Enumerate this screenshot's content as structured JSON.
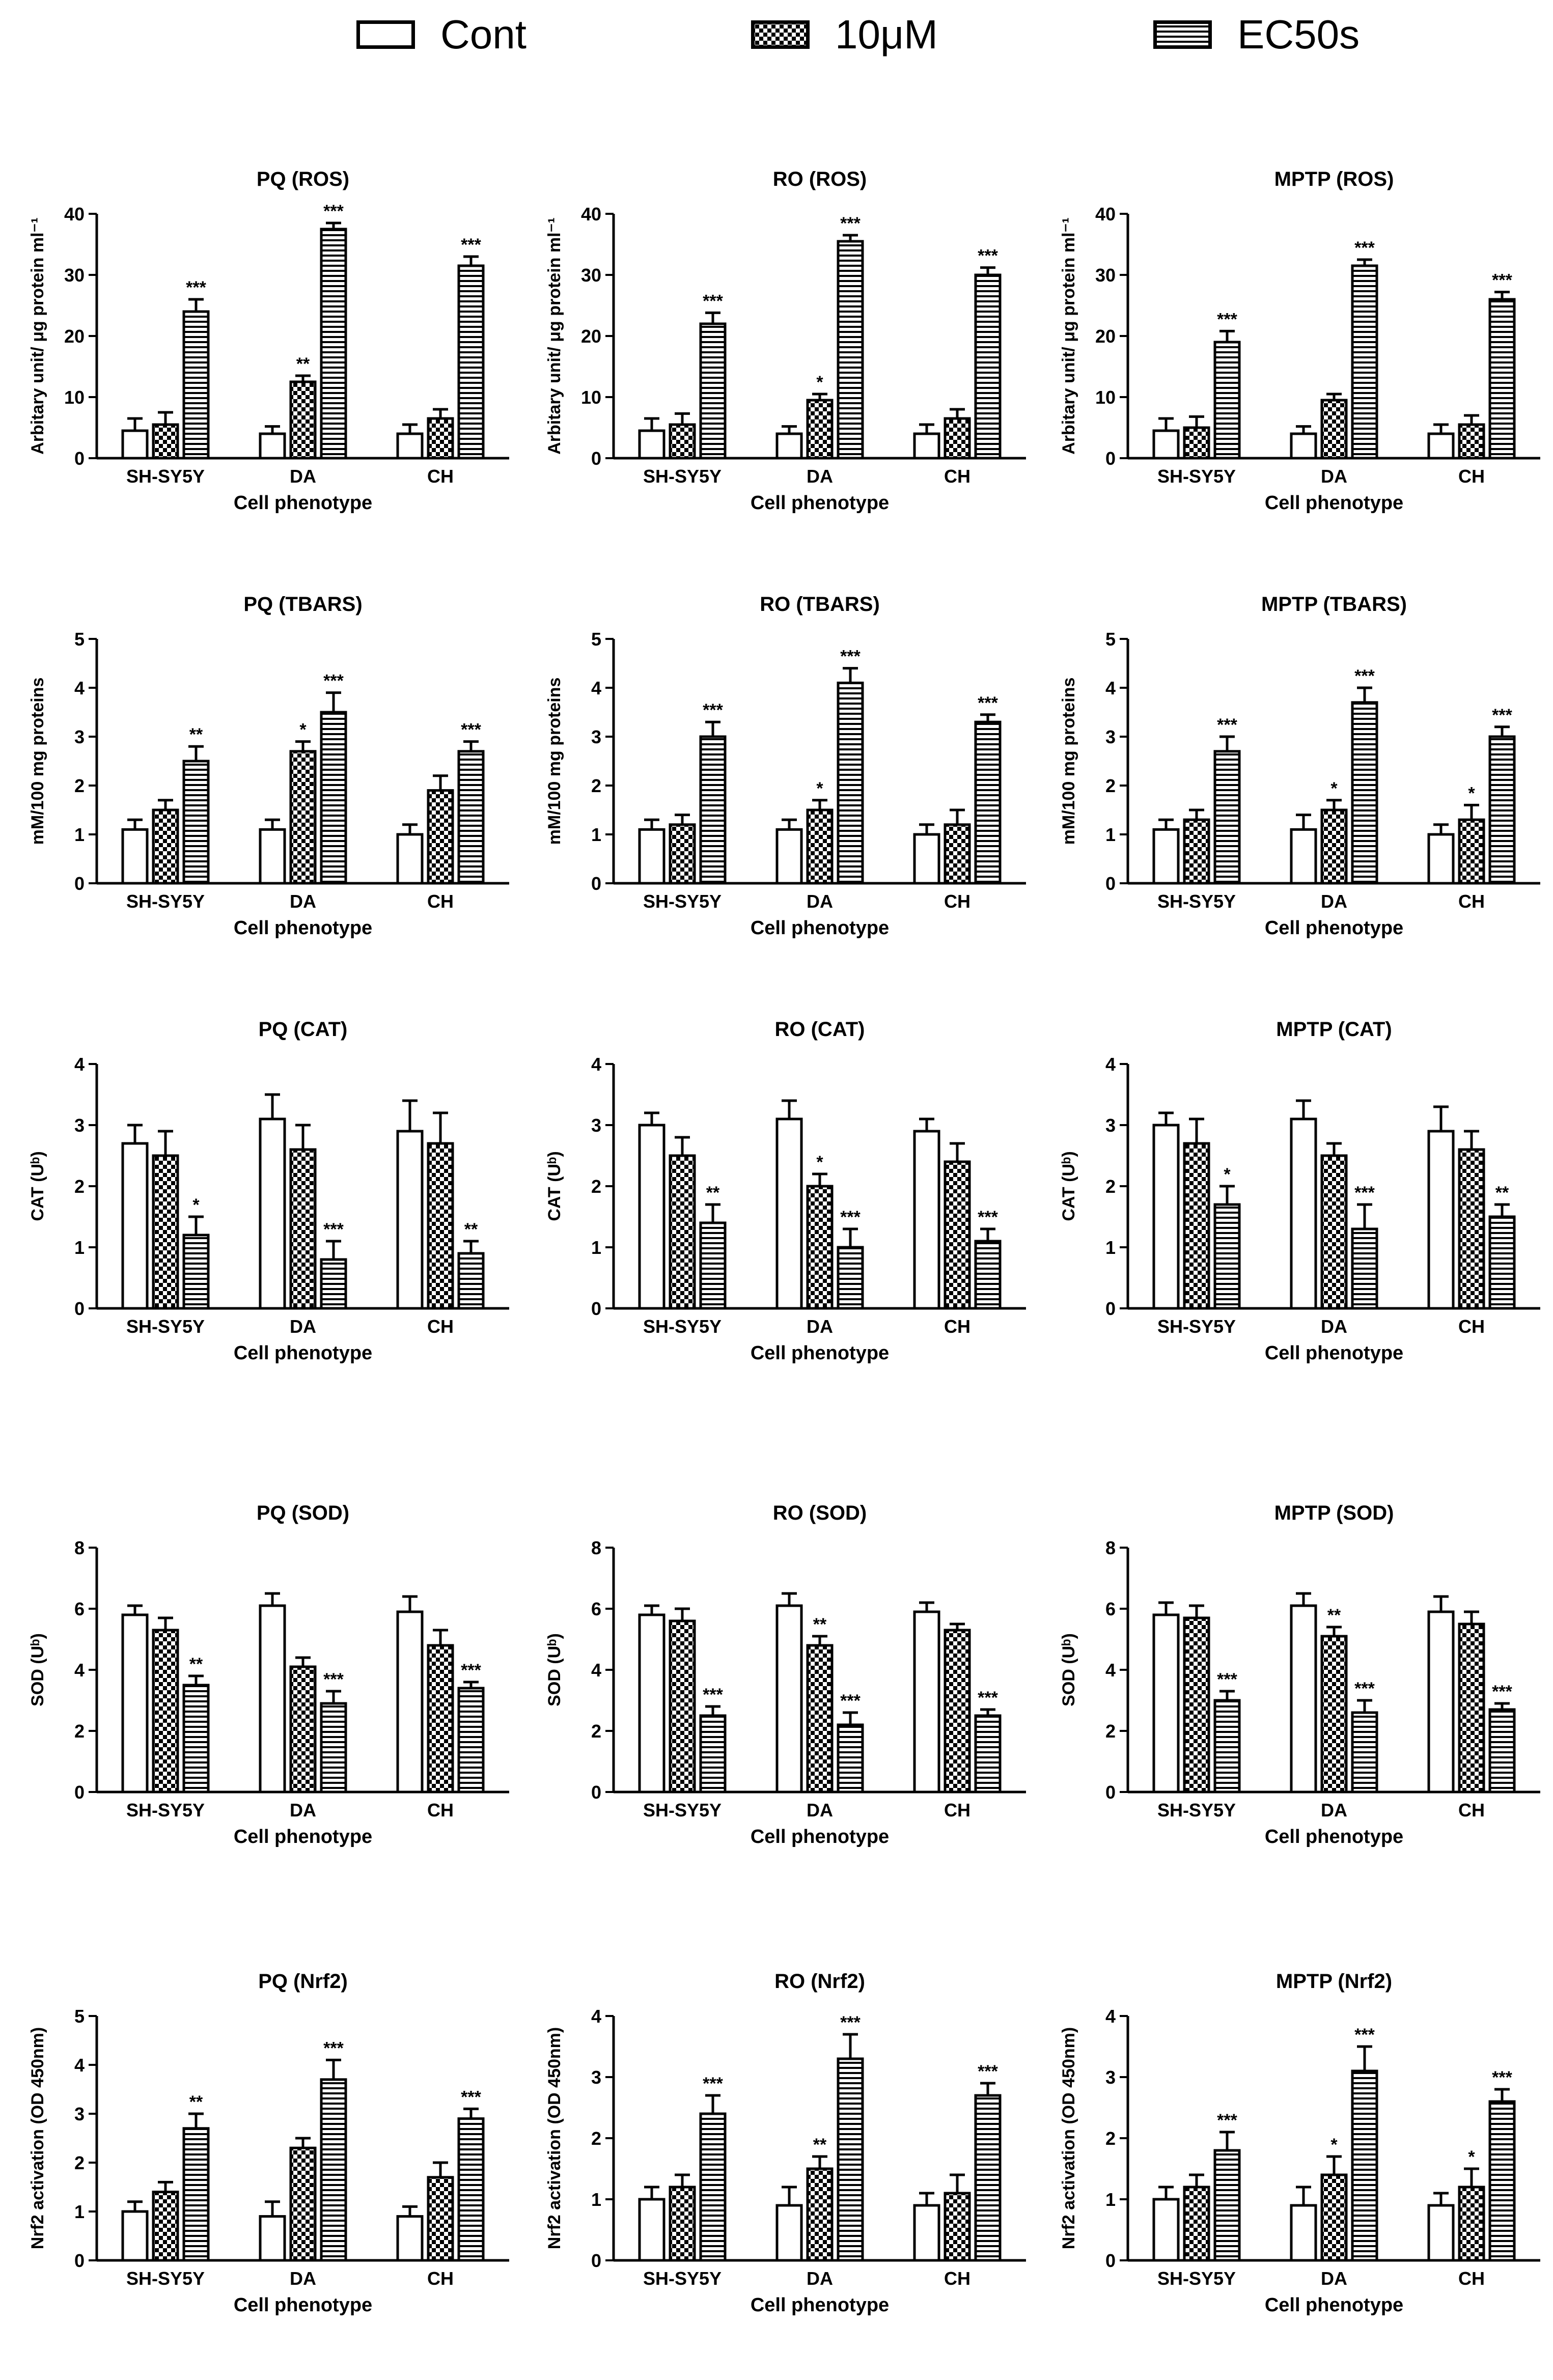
{
  "legend": [
    {
      "label": "Cont",
      "pattern": "empty"
    },
    {
      "label": "10μM",
      "pattern": "checker"
    },
    {
      "label": "EC50s",
      "pattern": "hlines"
    }
  ],
  "chart_data": [
    {
      "type": "bar",
      "title": "PQ (ROS)",
      "xlabel": "Cell phenotype",
      "ylabel": "Arbitary unit/ μg protein ml⁻¹",
      "ylim": [
        0,
        40
      ],
      "yticks": [
        0,
        10,
        20,
        30,
        40
      ],
      "categories": [
        "SH-SY5Y",
        "DA",
        "CH"
      ],
      "series": [
        {
          "name": "Cont",
          "values": [
            4.5,
            4,
            4
          ],
          "errors": [
            2,
            1.2,
            1.5
          ],
          "sig": [
            "",
            "",
            ""
          ]
        },
        {
          "name": "10μM",
          "values": [
            5.5,
            12.5,
            6.5
          ],
          "errors": [
            2,
            1,
            1.5
          ],
          "sig": [
            "",
            "**",
            ""
          ]
        },
        {
          "name": "EC50s",
          "values": [
            24,
            37.5,
            31.5
          ],
          "errors": [
            2,
            1,
            1.5
          ],
          "sig": [
            "***",
            "***",
            "***"
          ]
        }
      ]
    },
    {
      "type": "bar",
      "title": "RO (ROS)",
      "xlabel": "Cell phenotype",
      "ylabel": "Arbitary unit/ μg protein ml⁻¹",
      "ylim": [
        0,
        40
      ],
      "yticks": [
        0,
        10,
        20,
        30,
        40
      ],
      "categories": [
        "SH-SY5Y",
        "DA",
        "CH"
      ],
      "series": [
        {
          "name": "Cont",
          "values": [
            4.5,
            4,
            4
          ],
          "errors": [
            2,
            1.2,
            1.5
          ],
          "sig": [
            "",
            "",
            ""
          ]
        },
        {
          "name": "10μM",
          "values": [
            5.5,
            9.5,
            6.5
          ],
          "errors": [
            1.8,
            1,
            1.5
          ],
          "sig": [
            "",
            "*",
            ""
          ]
        },
        {
          "name": "EC50s",
          "values": [
            22,
            35.5,
            30
          ],
          "errors": [
            1.8,
            1,
            1.2
          ],
          "sig": [
            "***",
            "***",
            "***"
          ]
        }
      ]
    },
    {
      "type": "bar",
      "title": "MPTP (ROS)",
      "xlabel": "Cell phenotype",
      "ylabel": "Arbitary unit/ μg protein ml⁻¹",
      "ylim": [
        0,
        40
      ],
      "yticks": [
        0,
        10,
        20,
        30,
        40
      ],
      "categories": [
        "SH-SY5Y",
        "DA",
        "CH"
      ],
      "series": [
        {
          "name": "Cont",
          "values": [
            4.5,
            4,
            4
          ],
          "errors": [
            2,
            1.2,
            1.5
          ],
          "sig": [
            "",
            "",
            ""
          ]
        },
        {
          "name": "10μM",
          "values": [
            5,
            9.5,
            5.5
          ],
          "errors": [
            1.8,
            1,
            1.5
          ],
          "sig": [
            "",
            "",
            ""
          ]
        },
        {
          "name": "EC50s",
          "values": [
            19,
            31.5,
            26
          ],
          "errors": [
            1.8,
            1,
            1.2
          ],
          "sig": [
            "***",
            "***",
            "***"
          ]
        }
      ]
    },
    {
      "type": "bar",
      "title": "PQ (TBARS)",
      "xlabel": "Cell phenotype",
      "ylabel": "mM/100 mg proteins",
      "ylim": [
        0,
        5
      ],
      "yticks": [
        0,
        1,
        2,
        3,
        4,
        5
      ],
      "categories": [
        "SH-SY5Y",
        "DA",
        "CH"
      ],
      "series": [
        {
          "name": "Cont",
          "values": [
            1.1,
            1.1,
            1
          ],
          "errors": [
            0.2,
            0.2,
            0.2
          ],
          "sig": [
            "",
            "",
            ""
          ]
        },
        {
          "name": "10μM",
          "values": [
            1.5,
            2.7,
            1.9
          ],
          "errors": [
            0.2,
            0.2,
            0.3
          ],
          "sig": [
            "",
            "*",
            ""
          ]
        },
        {
          "name": "EC50s",
          "values": [
            2.5,
            3.5,
            2.7
          ],
          "errors": [
            0.3,
            0.4,
            0.2
          ],
          "sig": [
            "**",
            "***",
            "***"
          ]
        }
      ]
    },
    {
      "type": "bar",
      "title": "RO (TBARS)",
      "xlabel": "Cell phenotype",
      "ylabel": "mM/100 mg proteins",
      "ylim": [
        0,
        5
      ],
      "yticks": [
        0,
        1,
        2,
        3,
        4,
        5
      ],
      "categories": [
        "SH-SY5Y",
        "DA",
        "CH"
      ],
      "series": [
        {
          "name": "Cont",
          "values": [
            1.1,
            1.1,
            1
          ],
          "errors": [
            0.2,
            0.2,
            0.2
          ],
          "sig": [
            "",
            "",
            ""
          ]
        },
        {
          "name": "10μM",
          "values": [
            1.2,
            1.5,
            1.2
          ],
          "errors": [
            0.2,
            0.2,
            0.3
          ],
          "sig": [
            "",
            "*",
            ""
          ]
        },
        {
          "name": "EC50s",
          "values": [
            3,
            4.1,
            3.3
          ],
          "errors": [
            0.3,
            0.3,
            0.15
          ],
          "sig": [
            "***",
            "***",
            "***"
          ]
        }
      ]
    },
    {
      "type": "bar",
      "title": "MPTP (TBARS)",
      "xlabel": "Cell phenotype",
      "ylabel": "mM/100 mg proteins",
      "ylim": [
        0,
        5
      ],
      "yticks": [
        0,
        1,
        2,
        3,
        4,
        5
      ],
      "categories": [
        "SH-SY5Y",
        "DA",
        "CH"
      ],
      "series": [
        {
          "name": "Cont",
          "values": [
            1.1,
            1.1,
            1
          ],
          "errors": [
            0.2,
            0.3,
            0.2
          ],
          "sig": [
            "",
            "",
            ""
          ]
        },
        {
          "name": "10μM",
          "values": [
            1.3,
            1.5,
            1.3
          ],
          "errors": [
            0.2,
            0.2,
            0.3
          ],
          "sig": [
            "",
            "*",
            "*"
          ]
        },
        {
          "name": "EC50s",
          "values": [
            2.7,
            3.7,
            3
          ],
          "errors": [
            0.3,
            0.3,
            0.2
          ],
          "sig": [
            "***",
            "***",
            "***"
          ]
        }
      ]
    },
    {
      "type": "bar",
      "title": "PQ (CAT)",
      "xlabel": "Cell phenotype",
      "ylabel": "CAT (Uᵇ)",
      "ylim": [
        0,
        4
      ],
      "yticks": [
        0,
        1,
        2,
        3,
        4
      ],
      "categories": [
        "SH-SY5Y",
        "DA",
        "CH"
      ],
      "series": [
        {
          "name": "Cont",
          "values": [
            2.7,
            3.1,
            2.9
          ],
          "errors": [
            0.3,
            0.4,
            0.5
          ],
          "sig": [
            "",
            "",
            ""
          ]
        },
        {
          "name": "10μM",
          "values": [
            2.5,
            2.6,
            2.7
          ],
          "errors": [
            0.4,
            0.4,
            0.5
          ],
          "sig": [
            "",
            "",
            ""
          ]
        },
        {
          "name": "EC50s",
          "values": [
            1.2,
            0.8,
            0.9
          ],
          "errors": [
            0.3,
            0.3,
            0.2
          ],
          "sig": [
            "*",
            "***",
            "**"
          ]
        }
      ]
    },
    {
      "type": "bar",
      "title": "RO (CAT)",
      "xlabel": "Cell phenotype",
      "ylabel": "CAT (Uᵇ)",
      "ylim": [
        0,
        4
      ],
      "yticks": [
        0,
        1,
        2,
        3,
        4
      ],
      "categories": [
        "SH-SY5Y",
        "DA",
        "CH"
      ],
      "series": [
        {
          "name": "Cont",
          "values": [
            3,
            3.1,
            2.9
          ],
          "errors": [
            0.2,
            0.3,
            0.2
          ],
          "sig": [
            "",
            "",
            ""
          ]
        },
        {
          "name": "10μM",
          "values": [
            2.5,
            2,
            2.4
          ],
          "errors": [
            0.3,
            0.2,
            0.3
          ],
          "sig": [
            "",
            "*",
            ""
          ]
        },
        {
          "name": "EC50s",
          "values": [
            1.4,
            1,
            1.1
          ],
          "errors": [
            0.3,
            0.3,
            0.2
          ],
          "sig": [
            "**",
            "***",
            "***"
          ]
        }
      ]
    },
    {
      "type": "bar",
      "title": "MPTP (CAT)",
      "xlabel": "Cell phenotype",
      "ylabel": "CAT (Uᵇ)",
      "ylim": [
        0,
        4
      ],
      "yticks": [
        0,
        1,
        2,
        3,
        4
      ],
      "categories": [
        "SH-SY5Y",
        "DA",
        "CH"
      ],
      "series": [
        {
          "name": "Cont",
          "values": [
            3,
            3.1,
            2.9
          ],
          "errors": [
            0.2,
            0.3,
            0.4
          ],
          "sig": [
            "",
            "",
            ""
          ]
        },
        {
          "name": "10μM",
          "values": [
            2.7,
            2.5,
            2.6
          ],
          "errors": [
            0.4,
            0.2,
            0.3
          ],
          "sig": [
            "",
            "",
            ""
          ]
        },
        {
          "name": "EC50s",
          "values": [
            1.7,
            1.3,
            1.5
          ],
          "errors": [
            0.3,
            0.4,
            0.2
          ],
          "sig": [
            "*",
            "***",
            "**"
          ]
        }
      ]
    },
    {
      "type": "bar",
      "title": "PQ (SOD)",
      "xlabel": "Cell phenotype",
      "ylabel": "SOD (Uᵇ)",
      "ylim": [
        0,
        8
      ],
      "yticks": [
        0,
        2,
        4,
        6,
        8
      ],
      "categories": [
        "SH-SY5Y",
        "DA",
        "CH"
      ],
      "series": [
        {
          "name": "Cont",
          "values": [
            5.8,
            6.1,
            5.9
          ],
          "errors": [
            0.3,
            0.4,
            0.5
          ],
          "sig": [
            "",
            "",
            ""
          ]
        },
        {
          "name": "10μM",
          "values": [
            5.3,
            4.1,
            4.8
          ],
          "errors": [
            0.4,
            0.3,
            0.5
          ],
          "sig": [
            "",
            "",
            ""
          ]
        },
        {
          "name": "EC50s",
          "values": [
            3.5,
            2.9,
            3.4
          ],
          "errors": [
            0.3,
            0.4,
            0.2
          ],
          "sig": [
            "**",
            "***",
            "***"
          ]
        }
      ]
    },
    {
      "type": "bar",
      "title": "RO (SOD)",
      "xlabel": "Cell phenotype",
      "ylabel": "SOD (Uᵇ)",
      "ylim": [
        0,
        8
      ],
      "yticks": [
        0,
        2,
        4,
        6,
        8
      ],
      "categories": [
        "SH-SY5Y",
        "DA",
        "CH"
      ],
      "series": [
        {
          "name": "Cont",
          "values": [
            5.8,
            6.1,
            5.9
          ],
          "errors": [
            0.3,
            0.4,
            0.3
          ],
          "sig": [
            "",
            "",
            ""
          ]
        },
        {
          "name": "10μM",
          "values": [
            5.6,
            4.8,
            5.3
          ],
          "errors": [
            0.4,
            0.3,
            0.2
          ],
          "sig": [
            "",
            "**",
            ""
          ]
        },
        {
          "name": "EC50s",
          "values": [
            2.5,
            2.2,
            2.5
          ],
          "errors": [
            0.3,
            0.4,
            0.2
          ],
          "sig": [
            "***",
            "***",
            "***"
          ]
        }
      ]
    },
    {
      "type": "bar",
      "title": "MPTP (SOD)",
      "xlabel": "Cell phenotype",
      "ylabel": "SOD (Uᵇ)",
      "ylim": [
        0,
        8
      ],
      "yticks": [
        0,
        2,
        4,
        6,
        8
      ],
      "categories": [
        "SH-SY5Y",
        "DA",
        "CH"
      ],
      "series": [
        {
          "name": "Cont",
          "values": [
            5.8,
            6.1,
            5.9
          ],
          "errors": [
            0.4,
            0.4,
            0.5
          ],
          "sig": [
            "",
            "",
            ""
          ]
        },
        {
          "name": "10μM",
          "values": [
            5.7,
            5.1,
            5.5
          ],
          "errors": [
            0.4,
            0.3,
            0.4
          ],
          "sig": [
            "",
            "**",
            ""
          ]
        },
        {
          "name": "EC50s",
          "values": [
            3,
            2.6,
            2.7
          ],
          "errors": [
            0.3,
            0.4,
            0.2
          ],
          "sig": [
            "***",
            "***",
            "***"
          ]
        }
      ]
    },
    {
      "type": "bar",
      "title": "PQ (Nrf2)",
      "xlabel": "Cell phenotype",
      "ylabel": "Nrf2 activation (OD 450nm)",
      "ylim": [
        0,
        5
      ],
      "yticks": [
        0,
        1,
        2,
        3,
        4,
        5
      ],
      "categories": [
        "SH-SY5Y",
        "DA",
        "CH"
      ],
      "series": [
        {
          "name": "Cont",
          "values": [
            1,
            0.9,
            0.9
          ],
          "errors": [
            0.2,
            0.3,
            0.2
          ],
          "sig": [
            "",
            "",
            ""
          ]
        },
        {
          "name": "10μM",
          "values": [
            1.4,
            2.3,
            1.7
          ],
          "errors": [
            0.2,
            0.2,
            0.3
          ],
          "sig": [
            "",
            "",
            ""
          ]
        },
        {
          "name": "EC50s",
          "values": [
            2.7,
            3.7,
            2.9
          ],
          "errors": [
            0.3,
            0.4,
            0.2
          ],
          "sig": [
            "**",
            "***",
            "***"
          ]
        }
      ]
    },
    {
      "type": "bar",
      "title": "RO (Nrf2)",
      "xlabel": "Cell phenotype",
      "ylabel": "Nrf2 activation (OD 450nm)",
      "ylim": [
        0,
        4
      ],
      "yticks": [
        0,
        1,
        2,
        3,
        4
      ],
      "categories": [
        "SH-SY5Y",
        "DA",
        "CH"
      ],
      "series": [
        {
          "name": "Cont",
          "values": [
            1,
            0.9,
            0.9
          ],
          "errors": [
            0.2,
            0.3,
            0.2
          ],
          "sig": [
            "",
            "",
            ""
          ]
        },
        {
          "name": "10μM",
          "values": [
            1.2,
            1.5,
            1.1
          ],
          "errors": [
            0.2,
            0.2,
            0.3
          ],
          "sig": [
            "",
            "**",
            ""
          ]
        },
        {
          "name": "EC50s",
          "values": [
            2.4,
            3.3,
            2.7
          ],
          "errors": [
            0.3,
            0.4,
            0.2
          ],
          "sig": [
            "***",
            "***",
            "***"
          ]
        }
      ]
    },
    {
      "type": "bar",
      "title": "MPTP (Nrf2)",
      "xlabel": "Cell phenotype",
      "ylabel": "Nrf2 activation (OD 450nm)",
      "ylim": [
        0,
        4
      ],
      "yticks": [
        0,
        1,
        2,
        3,
        4
      ],
      "categories": [
        "SH-SY5Y",
        "DA",
        "CH"
      ],
      "series": [
        {
          "name": "Cont",
          "values": [
            1,
            0.9,
            0.9
          ],
          "errors": [
            0.2,
            0.3,
            0.2
          ],
          "sig": [
            "",
            "",
            ""
          ]
        },
        {
          "name": "10μM",
          "values": [
            1.2,
            1.4,
            1.2
          ],
          "errors": [
            0.2,
            0.3,
            0.3
          ],
          "sig": [
            "",
            "*",
            "*"
          ]
        },
        {
          "name": "EC50s",
          "values": [
            1.8,
            3.1,
            2.6
          ],
          "errors": [
            0.3,
            0.4,
            0.2
          ],
          "sig": [
            "***",
            "***",
            "***"
          ]
        }
      ]
    }
  ]
}
